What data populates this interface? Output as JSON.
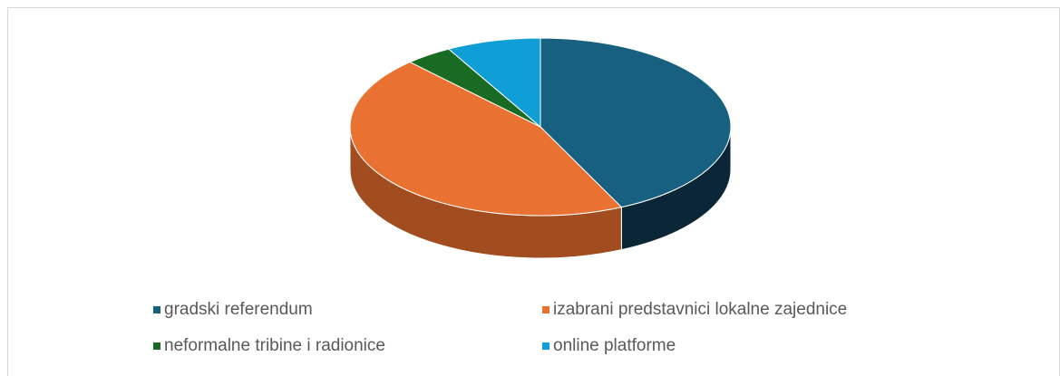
{
  "chart_data": {
    "type": "pie3d",
    "categories": [
      "gradski referendum",
      "izabrani predstavnici lokalne zajednice",
      "neformalne tribine i radionice",
      "online platforme"
    ],
    "values": [
      43,
      45,
      4,
      8
    ],
    "colors": [
      "#17607f",
      "#e97132",
      "#196b24",
      "#0f9ed5"
    ],
    "side_colors": [
      "#0b2636",
      "#a24d1f",
      "#0f4216",
      "#0a6a90"
    ],
    "legend": "bottom"
  }
}
